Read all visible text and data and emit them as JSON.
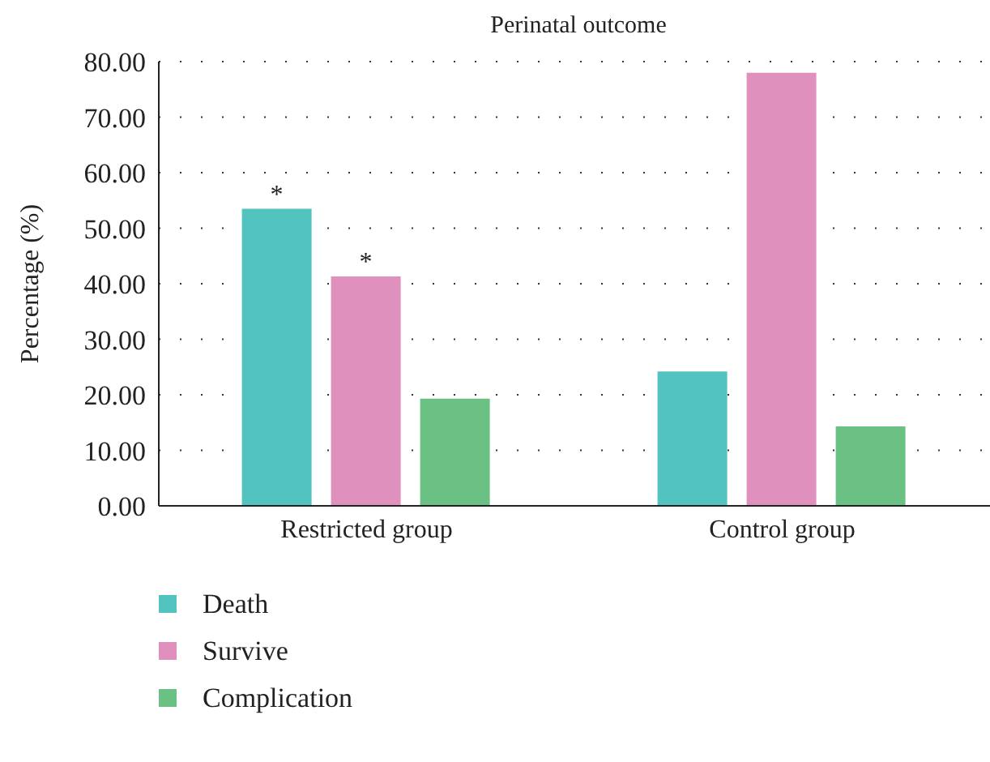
{
  "chart_data": {
    "type": "bar",
    "title": "Perinatal outcome",
    "ylabel": "Percentage (%)",
    "categories": [
      "Restricted group",
      "Control group"
    ],
    "series": [
      {
        "name": "Death",
        "color": "#52c3bf",
        "values": [
          53.5,
          24.2
        ]
      },
      {
        "name": "Survive",
        "color": "#df90bc",
        "values": [
          41.3,
          78.0
        ]
      },
      {
        "name": "Complication",
        "color": "#6bc183",
        "values": [
          19.3,
          14.3
        ]
      }
    ],
    "ylim": [
      0,
      80
    ],
    "yticks": [
      {
        "value": 0,
        "label": "0.00"
      },
      {
        "value": 10,
        "label": "10.00"
      },
      {
        "value": 20,
        "label": "20.00"
      },
      {
        "value": 30,
        "label": "30.00"
      },
      {
        "value": 40,
        "label": "40.00"
      },
      {
        "value": 50,
        "label": "50.00"
      },
      {
        "value": 60,
        "label": "60.00"
      },
      {
        "value": 70,
        "label": "70.00"
      },
      {
        "value": 80,
        "label": "80.00"
      }
    ],
    "grid": "y",
    "legend": "bottom left",
    "annotations": [
      "*",
      "*"
    ]
  }
}
